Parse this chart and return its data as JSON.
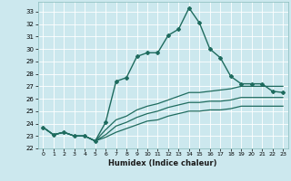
{
  "xlabel": "Humidex (Indice chaleur)",
  "ylabel": "",
  "xlim": [
    -0.5,
    23.5
  ],
  "ylim": [
    22.0,
    33.8
  ],
  "yticks": [
    22,
    23,
    24,
    25,
    26,
    27,
    28,
    29,
    30,
    31,
    32,
    33
  ],
  "xticks": [
    0,
    1,
    2,
    3,
    4,
    5,
    6,
    7,
    8,
    9,
    10,
    11,
    12,
    13,
    14,
    15,
    16,
    17,
    18,
    19,
    20,
    21,
    22,
    23
  ],
  "bg_color": "#cce8ee",
  "grid_color": "#ffffff",
  "line_color": "#1e6b5e",
  "lines": [
    {
      "x": [
        0,
        1,
        2,
        3,
        4,
        5,
        6,
        7,
        8,
        9,
        10,
        11,
        12,
        13,
        14,
        15,
        16,
        17,
        18,
        19,
        20,
        21,
        22,
        23
      ],
      "y": [
        23.7,
        23.1,
        23.3,
        23.0,
        23.0,
        22.6,
        24.1,
        27.4,
        27.7,
        29.4,
        29.7,
        29.7,
        31.1,
        31.6,
        33.3,
        32.1,
        30.0,
        29.3,
        27.8,
        27.2,
        27.2,
        27.2,
        26.6,
        26.5
      ],
      "marker": "D",
      "markersize": 2.0,
      "linewidth": 1.0
    },
    {
      "x": [
        0,
        1,
        2,
        3,
        4,
        5,
        6,
        7,
        8,
        9,
        10,
        11,
        12,
        13,
        14,
        15,
        16,
        17,
        18,
        19,
        20,
        21,
        22,
        23
      ],
      "y": [
        23.7,
        23.1,
        23.3,
        23.0,
        23.0,
        22.6,
        23.5,
        24.3,
        24.6,
        25.1,
        25.4,
        25.6,
        25.9,
        26.2,
        26.5,
        26.5,
        26.6,
        26.7,
        26.8,
        27.0,
        27.0,
        27.0,
        27.0,
        27.0
      ],
      "marker": null,
      "markersize": 0,
      "linewidth": 0.9
    },
    {
      "x": [
        0,
        1,
        2,
        3,
        4,
        5,
        6,
        7,
        8,
        9,
        10,
        11,
        12,
        13,
        14,
        15,
        16,
        17,
        18,
        19,
        20,
        21,
        22,
        23
      ],
      "y": [
        23.7,
        23.1,
        23.3,
        23.0,
        23.0,
        22.6,
        23.1,
        23.8,
        24.1,
        24.5,
        24.8,
        25.0,
        25.3,
        25.5,
        25.7,
        25.7,
        25.8,
        25.8,
        25.9,
        26.1,
        26.1,
        26.1,
        26.1,
        26.1
      ],
      "marker": null,
      "markersize": 0,
      "linewidth": 0.9
    },
    {
      "x": [
        0,
        1,
        2,
        3,
        4,
        5,
        6,
        7,
        8,
        9,
        10,
        11,
        12,
        13,
        14,
        15,
        16,
        17,
        18,
        19,
        20,
        21,
        22,
        23
      ],
      "y": [
        23.7,
        23.1,
        23.3,
        23.0,
        23.0,
        22.6,
        22.9,
        23.3,
        23.6,
        23.9,
        24.2,
        24.3,
        24.6,
        24.8,
        25.0,
        25.0,
        25.1,
        25.1,
        25.2,
        25.4,
        25.4,
        25.4,
        25.4,
        25.4
      ],
      "marker": null,
      "markersize": 0,
      "linewidth": 0.9
    }
  ]
}
